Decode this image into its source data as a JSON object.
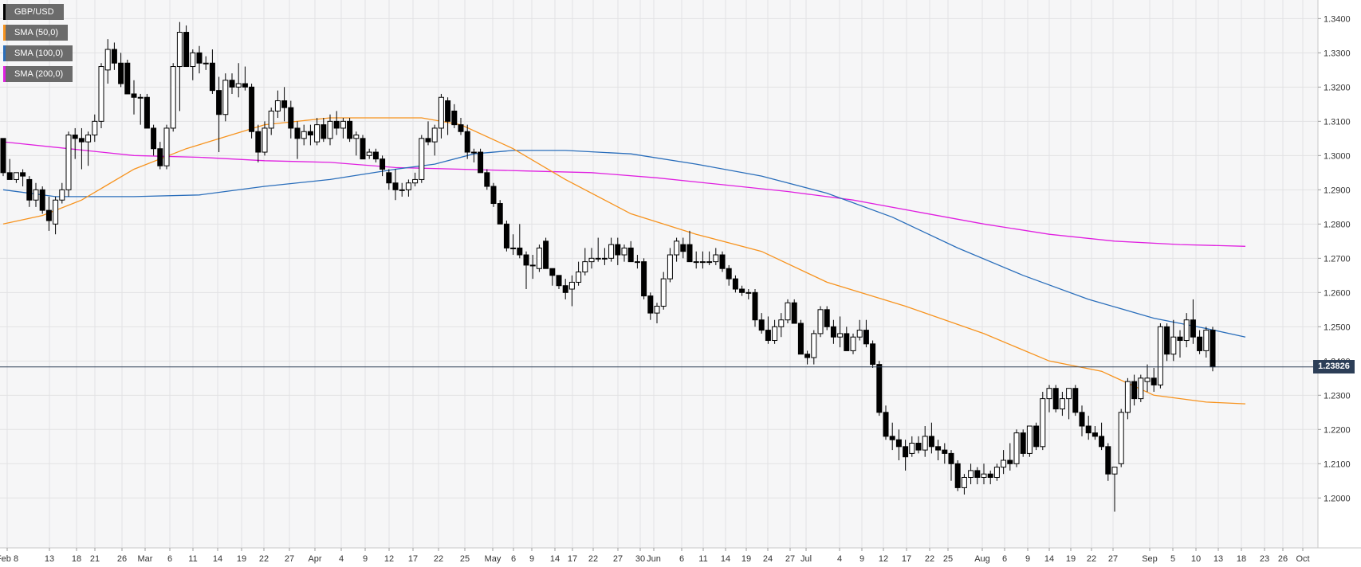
{
  "chart_data": {
    "type": "candlestick",
    "symbol": "GBP/USD",
    "legend": [
      {
        "label": "GBP/USD",
        "color": "#000000"
      },
      {
        "label": "SMA (50,0)",
        "color": "#f7931e"
      },
      {
        "label": "SMA (100,0)",
        "color": "#2a6ebb"
      },
      {
        "label": "SMA (200,0)",
        "color": "#e020e0"
      }
    ],
    "last_price_label": "1.23826",
    "last_price": 1.23826,
    "y_ticks": [
      "1.2000",
      "1.2100",
      "1.2200",
      "1.2300",
      "1.2400",
      "1.2500",
      "1.2600",
      "1.2700",
      "1.2800",
      "1.2900",
      "1.3000",
      "1.3100",
      "1.3200",
      "1.3300",
      "1.3400"
    ],
    "x_ticks": [
      "Feb 8",
      "13",
      "18",
      "21",
      "26",
      "Mar",
      "6",
      "11",
      "14",
      "19",
      "22",
      "27",
      "Apr",
      "4",
      "9",
      "12",
      "17",
      "22",
      "25",
      "May",
      "6",
      "9",
      "14",
      "17",
      "22",
      "27",
      "30",
      "Jun",
      "6",
      "11",
      "14",
      "19",
      "24",
      "27",
      "Jul",
      "4",
      "9",
      "12",
      "17",
      "22",
      "25",
      "Aug",
      "6",
      "9",
      "14",
      "19",
      "22",
      "27",
      "Sep",
      "5",
      "10",
      "13",
      "18",
      "23",
      "26",
      "Oct"
    ],
    "ylim": [
      1.191,
      1.3445
    ],
    "grid": true,
    "candles": [
      [
        1.305,
        1.305,
        1.294,
        1.295
      ],
      [
        1.295,
        1.299,
        1.293,
        1.293
      ],
      [
        1.293,
        1.295,
        1.292,
        1.295
      ],
      [
        1.295,
        1.296,
        1.291,
        1.294
      ],
      [
        1.293,
        1.294,
        1.285,
        1.287
      ],
      [
        1.287,
        1.292,
        1.285,
        1.29
      ],
      [
        1.29,
        1.291,
        1.283,
        1.284
      ],
      [
        1.284,
        1.288,
        1.278,
        1.281
      ],
      [
        1.28,
        1.288,
        1.277,
        1.287
      ],
      [
        1.287,
        1.292,
        1.286,
        1.29
      ],
      [
        1.29,
        1.307,
        1.288,
        1.306
      ],
      [
        1.306,
        1.308,
        1.299,
        1.305
      ],
      [
        1.305,
        1.308,
        1.296,
        1.304
      ],
      [
        1.304,
        1.307,
        1.297,
        1.306
      ],
      [
        1.306,
        1.312,
        1.304,
        1.31
      ],
      [
        1.31,
        1.327,
        1.308,
        1.326
      ],
      [
        1.325,
        1.334,
        1.321,
        1.331
      ],
      [
        1.331,
        1.333,
        1.325,
        1.327
      ],
      [
        1.327,
        1.33,
        1.32,
        1.321
      ],
      [
        1.327,
        1.328,
        1.318,
        1.318
      ],
      [
        1.318,
        1.322,
        1.312,
        1.317
      ],
      [
        1.317,
        1.318,
        1.309,
        1.317
      ],
      [
        1.317,
        1.318,
        1.308,
        1.308
      ],
      [
        1.308,
        1.309,
        1.3,
        1.302
      ],
      [
        1.302,
        1.304,
        1.296,
        1.297
      ],
      [
        1.297,
        1.309,
        1.296,
        1.308
      ],
      [
        1.308,
        1.327,
        1.307,
        1.326
      ],
      [
        1.326,
        1.339,
        1.313,
        1.336
      ],
      [
        1.336,
        1.338,
        1.326,
        1.326
      ],
      [
        1.326,
        1.331,
        1.322,
        1.33
      ],
      [
        1.33,
        1.332,
        1.324,
        1.327
      ],
      [
        1.327,
        1.329,
        1.325,
        1.327
      ],
      [
        1.327,
        1.331,
        1.318,
        1.319
      ],
      [
        1.319,
        1.323,
        1.301,
        1.312
      ],
      [
        1.312,
        1.324,
        1.31,
        1.322
      ],
      [
        1.322,
        1.324,
        1.318,
        1.32
      ],
      [
        1.32,
        1.327,
        1.317,
        1.321
      ],
      [
        1.321,
        1.326,
        1.319,
        1.32
      ],
      [
        1.32,
        1.321,
        1.305,
        1.307
      ],
      [
        1.307,
        1.309,
        1.298,
        1.301
      ],
      [
        1.301,
        1.31,
        1.3,
        1.308
      ],
      [
        1.308,
        1.314,
        1.306,
        1.313
      ],
      [
        1.313,
        1.319,
        1.311,
        1.316
      ],
      [
        1.316,
        1.32,
        1.31,
        1.314
      ],
      [
        1.314,
        1.316,
        1.305,
        1.308
      ],
      [
        1.308,
        1.31,
        1.299,
        1.305
      ],
      [
        1.305,
        1.309,
        1.303,
        1.307
      ],
      [
        1.307,
        1.309,
        1.303,
        1.306
      ],
      [
        1.304,
        1.311,
        1.303,
        1.309
      ],
      [
        1.309,
        1.311,
        1.304,
        1.305
      ],
      [
        1.305,
        1.312,
        1.303,
        1.31
      ],
      [
        1.31,
        1.313,
        1.306,
        1.308
      ],
      [
        1.308,
        1.311,
        1.305,
        1.31
      ],
      [
        1.31,
        1.311,
        1.304,
        1.305
      ],
      [
        1.305,
        1.307,
        1.3,
        1.306
      ],
      [
        1.305,
        1.306,
        1.299,
        1.299
      ],
      [
        1.3,
        1.302,
        1.299,
        1.301
      ],
      [
        1.301,
        1.302,
        1.298,
        1.299
      ],
      [
        1.299,
        1.3,
        1.294,
        1.296
      ],
      [
        1.295,
        1.296,
        1.29,
        1.292
      ],
      [
        1.292,
        1.296,
        1.287,
        1.29
      ],
      [
        1.29,
        1.292,
        1.288,
        1.29
      ],
      [
        1.29,
        1.293,
        1.288,
        1.292
      ],
      [
        1.292,
        1.295,
        1.291,
        1.293
      ],
      [
        1.293,
        1.306,
        1.292,
        1.305
      ],
      [
        1.305,
        1.31,
        1.303,
        1.304
      ],
      [
        1.304,
        1.309,
        1.3,
        1.308
      ],
      [
        1.308,
        1.318,
        1.305,
        1.317
      ],
      [
        1.316,
        1.317,
        1.306,
        1.31
      ],
      [
        1.313,
        1.315,
        1.308,
        1.309
      ],
      [
        1.309,
        1.311,
        1.306,
        1.307
      ],
      [
        1.307,
        1.309,
        1.299,
        1.301
      ],
      [
        1.301,
        1.302,
        1.298,
        1.301
      ],
      [
        1.301,
        1.302,
        1.295,
        1.295
      ],
      [
        1.295,
        1.296,
        1.29,
        1.291
      ],
      [
        1.291,
        1.292,
        1.285,
        1.286
      ],
      [
        1.286,
        1.287,
        1.28,
        1.28
      ],
      [
        1.28,
        1.281,
        1.272,
        1.273
      ],
      [
        1.273,
        1.277,
        1.271,
        1.273
      ],
      [
        1.273,
        1.28,
        1.27,
        1.271
      ],
      [
        1.271,
        1.272,
        1.261,
        1.268
      ],
      [
        1.268,
        1.271,
        1.264,
        1.268
      ],
      [
        1.267,
        1.274,
        1.266,
        1.273
      ],
      [
        1.275,
        1.276,
        1.267,
        1.267
      ],
      [
        1.267,
        1.267,
        1.262,
        1.265
      ],
      [
        1.265,
        1.265,
        1.261,
        1.262
      ],
      [
        1.262,
        1.264,
        1.258,
        1.26
      ],
      [
        1.261,
        1.265,
        1.256,
        1.263
      ],
      [
        1.263,
        1.269,
        1.262,
        1.266
      ],
      [
        1.266,
        1.273,
        1.265,
        1.269
      ],
      [
        1.269,
        1.273,
        1.267,
        1.27
      ],
      [
        1.27,
        1.276,
        1.269,
        1.27
      ],
      [
        1.27,
        1.273,
        1.268,
        1.27
      ],
      [
        1.27,
        1.276,
        1.269,
        1.274
      ],
      [
        1.274,
        1.276,
        1.268,
        1.271
      ],
      [
        1.271,
        1.274,
        1.269,
        1.273
      ],
      [
        1.273,
        1.275,
        1.269,
        1.269
      ],
      [
        1.269,
        1.271,
        1.267,
        1.269
      ],
      [
        1.269,
        1.27,
        1.258,
        1.259
      ],
      [
        1.259,
        1.26,
        1.252,
        1.254
      ],
      [
        1.254,
        1.257,
        1.251,
        1.256
      ],
      [
        1.256,
        1.266,
        1.255,
        1.264
      ],
      [
        1.264,
        1.273,
        1.263,
        1.271
      ],
      [
        1.271,
        1.276,
        1.269,
        1.275
      ],
      [
        1.274,
        1.276,
        1.27,
        1.272
      ],
      [
        1.274,
        1.278,
        1.269,
        1.269
      ],
      [
        1.269,
        1.272,
        1.267,
        1.269
      ],
      [
        1.269,
        1.272,
        1.267,
        1.269
      ],
      [
        1.269,
        1.272,
        1.268,
        1.269
      ],
      [
        1.269,
        1.273,
        1.268,
        1.271
      ],
      [
        1.271,
        1.272,
        1.266,
        1.267
      ],
      [
        1.267,
        1.268,
        1.262,
        1.264
      ],
      [
        1.264,
        1.265,
        1.26,
        1.261
      ],
      [
        1.261,
        1.262,
        1.259,
        1.26
      ],
      [
        1.26,
        1.261,
        1.258,
        1.26
      ],
      [
        1.26,
        1.261,
        1.25,
        1.252
      ],
      [
        1.252,
        1.254,
        1.248,
        1.249
      ],
      [
        1.249,
        1.253,
        1.245,
        1.246
      ],
      [
        1.246,
        1.252,
        1.245,
        1.25
      ],
      [
        1.25,
        1.254,
        1.247,
        1.252
      ],
      [
        1.252,
        1.258,
        1.251,
        1.257
      ],
      [
        1.257,
        1.258,
        1.251,
        1.251
      ],
      [
        1.251,
        1.252,
        1.242,
        1.242
      ],
      [
        1.242,
        1.243,
        1.239,
        1.241
      ],
      [
        1.241,
        1.249,
        1.239,
        1.248
      ],
      [
        1.248,
        1.256,
        1.247,
        1.255
      ],
      [
        1.255,
        1.256,
        1.249,
        1.25
      ],
      [
        1.25,
        1.252,
        1.245,
        1.247
      ],
      [
        1.247,
        1.253,
        1.244,
        1.248
      ],
      [
        1.248,
        1.25,
        1.244,
        1.243
      ],
      [
        1.243,
        1.248,
        1.242,
        1.247
      ],
      [
        1.247,
        1.252,
        1.246,
        1.249
      ],
      [
        1.249,
        1.252,
        1.244,
        1.245
      ],
      [
        1.245,
        1.246,
        1.238,
        1.239
      ],
      [
        1.239,
        1.24,
        1.224,
        1.225
      ],
      [
        1.225,
        1.227,
        1.217,
        1.218
      ],
      [
        1.218,
        1.222,
        1.214,
        1.217
      ],
      [
        1.217,
        1.22,
        1.211,
        1.215
      ],
      [
        1.215,
        1.217,
        1.208,
        1.212
      ],
      [
        1.213,
        1.218,
        1.212,
        1.216
      ],
      [
        1.216,
        1.218,
        1.213,
        1.214
      ],
      [
        1.214,
        1.221,
        1.212,
        1.218
      ],
      [
        1.218,
        1.222,
        1.213,
        1.215
      ],
      [
        1.215,
        1.217,
        1.211,
        1.214
      ],
      [
        1.214,
        1.216,
        1.21,
        1.213
      ],
      [
        1.213,
        1.214,
        1.205,
        1.21
      ],
      [
        1.21,
        1.211,
        1.202,
        1.203
      ],
      [
        1.203,
        1.207,
        1.201,
        1.206
      ],
      [
        1.206,
        1.21,
        1.204,
        1.208
      ],
      [
        1.208,
        1.209,
        1.204,
        1.206
      ],
      [
        1.206,
        1.21,
        1.204,
        1.207
      ],
      [
        1.207,
        1.208,
        1.204,
        1.206
      ],
      [
        1.206,
        1.21,
        1.205,
        1.209
      ],
      [
        1.209,
        1.214,
        1.207,
        1.211
      ],
      [
        1.211,
        1.216,
        1.208,
        1.21
      ],
      [
        1.21,
        1.22,
        1.209,
        1.219
      ],
      [
        1.219,
        1.22,
        1.212,
        1.213
      ],
      [
        1.213,
        1.221,
        1.212,
        1.221
      ],
      [
        1.221,
        1.222,
        1.214,
        1.215
      ],
      [
        1.215,
        1.231,
        1.214,
        1.229
      ],
      [
        1.229,
        1.233,
        1.225,
        1.232
      ],
      [
        1.232,
        1.233,
        1.225,
        1.226
      ],
      [
        1.226,
        1.231,
        1.224,
        1.229
      ],
      [
        1.229,
        1.231,
        1.223,
        1.232
      ],
      [
        1.232,
        1.233,
        1.224,
        1.225
      ],
      [
        1.225,
        1.227,
        1.218,
        1.221
      ],
      [
        1.221,
        1.224,
        1.217,
        1.219
      ],
      [
        1.219,
        1.221,
        1.217,
        1.218
      ],
      [
        1.218,
        1.222,
        1.214,
        1.215
      ],
      [
        1.215,
        1.216,
        1.205,
        1.207
      ],
      [
        1.207,
        1.209,
        1.196,
        1.209
      ],
      [
        1.21,
        1.226,
        1.209,
        1.225
      ],
      [
        1.225,
        1.235,
        1.223,
        1.234
      ],
      [
        1.234,
        1.236,
        1.227,
        1.229
      ],
      [
        1.229,
        1.236,
        1.228,
        1.235
      ],
      [
        1.234,
        1.239,
        1.231,
        1.235
      ],
      [
        1.235,
        1.238,
        1.231,
        1.233
      ],
      [
        1.233,
        1.251,
        1.232,
        1.25
      ],
      [
        1.25,
        1.251,
        1.24,
        1.242
      ],
      [
        1.242,
        1.252,
        1.24,
        1.247
      ],
      [
        1.247,
        1.249,
        1.241,
        1.246
      ],
      [
        1.246,
        1.254,
        1.244,
        1.252
      ],
      [
        1.252,
        1.258,
        1.245,
        1.247
      ],
      [
        1.247,
        1.249,
        1.242,
        1.243
      ],
      [
        1.243,
        1.25,
        1.241,
        1.249
      ],
      [
        1.249,
        1.25,
        1.237,
        1.2383
      ]
    ],
    "sma_50": [
      [
        0,
        1.28
      ],
      [
        6,
        1.2825
      ],
      [
        12,
        1.287
      ],
      [
        20,
        1.296
      ],
      [
        28,
        1.302
      ],
      [
        40,
        1.309
      ],
      [
        50,
        1.311
      ],
      [
        58,
        1.311
      ],
      [
        64,
        1.311
      ],
      [
        70,
        1.309
      ],
      [
        78,
        1.302
      ],
      [
        86,
        1.293
      ],
      [
        96,
        1.283
      ],
      [
        106,
        1.277
      ],
      [
        116,
        1.272
      ],
      [
        126,
        1.263
      ],
      [
        138,
        1.256
      ],
      [
        150,
        1.248
      ],
      [
        160,
        1.24
      ],
      [
        168,
        1.237
      ],
      [
        176,
        1.23
      ],
      [
        184,
        1.228
      ],
      [
        190,
        1.2275
      ]
    ],
    "sma_100": [
      [
        0,
        1.29
      ],
      [
        8,
        1.288
      ],
      [
        20,
        1.288
      ],
      [
        30,
        1.2885
      ],
      [
        40,
        1.291
      ],
      [
        50,
        1.293
      ],
      [
        60,
        1.296
      ],
      [
        66,
        1.2975
      ],
      [
        72,
        1.3005
      ],
      [
        78,
        1.3015
      ],
      [
        86,
        1.3015
      ],
      [
        96,
        1.3005
      ],
      [
        106,
        1.2975
      ],
      [
        116,
        1.294
      ],
      [
        126,
        1.289
      ],
      [
        136,
        1.282
      ],
      [
        146,
        1.273
      ],
      [
        156,
        1.265
      ],
      [
        166,
        1.258
      ],
      [
        176,
        1.2525
      ],
      [
        184,
        1.2495
      ],
      [
        190,
        1.247
      ]
    ],
    "sma_200": [
      [
        0,
        1.304
      ],
      [
        10,
        1.302
      ],
      [
        20,
        1.3
      ],
      [
        30,
        1.2995
      ],
      [
        40,
        1.2985
      ],
      [
        50,
        1.298
      ],
      [
        60,
        1.2965
      ],
      [
        70,
        1.296
      ],
      [
        80,
        1.2955
      ],
      [
        90,
        1.295
      ],
      [
        100,
        1.2935
      ],
      [
        110,
        1.2915
      ],
      [
        120,
        1.2895
      ],
      [
        130,
        1.287
      ],
      [
        140,
        1.2835
      ],
      [
        150,
        1.28
      ],
      [
        160,
        1.277
      ],
      [
        170,
        1.275
      ],
      [
        180,
        1.274
      ],
      [
        190,
        1.2735
      ]
    ]
  }
}
